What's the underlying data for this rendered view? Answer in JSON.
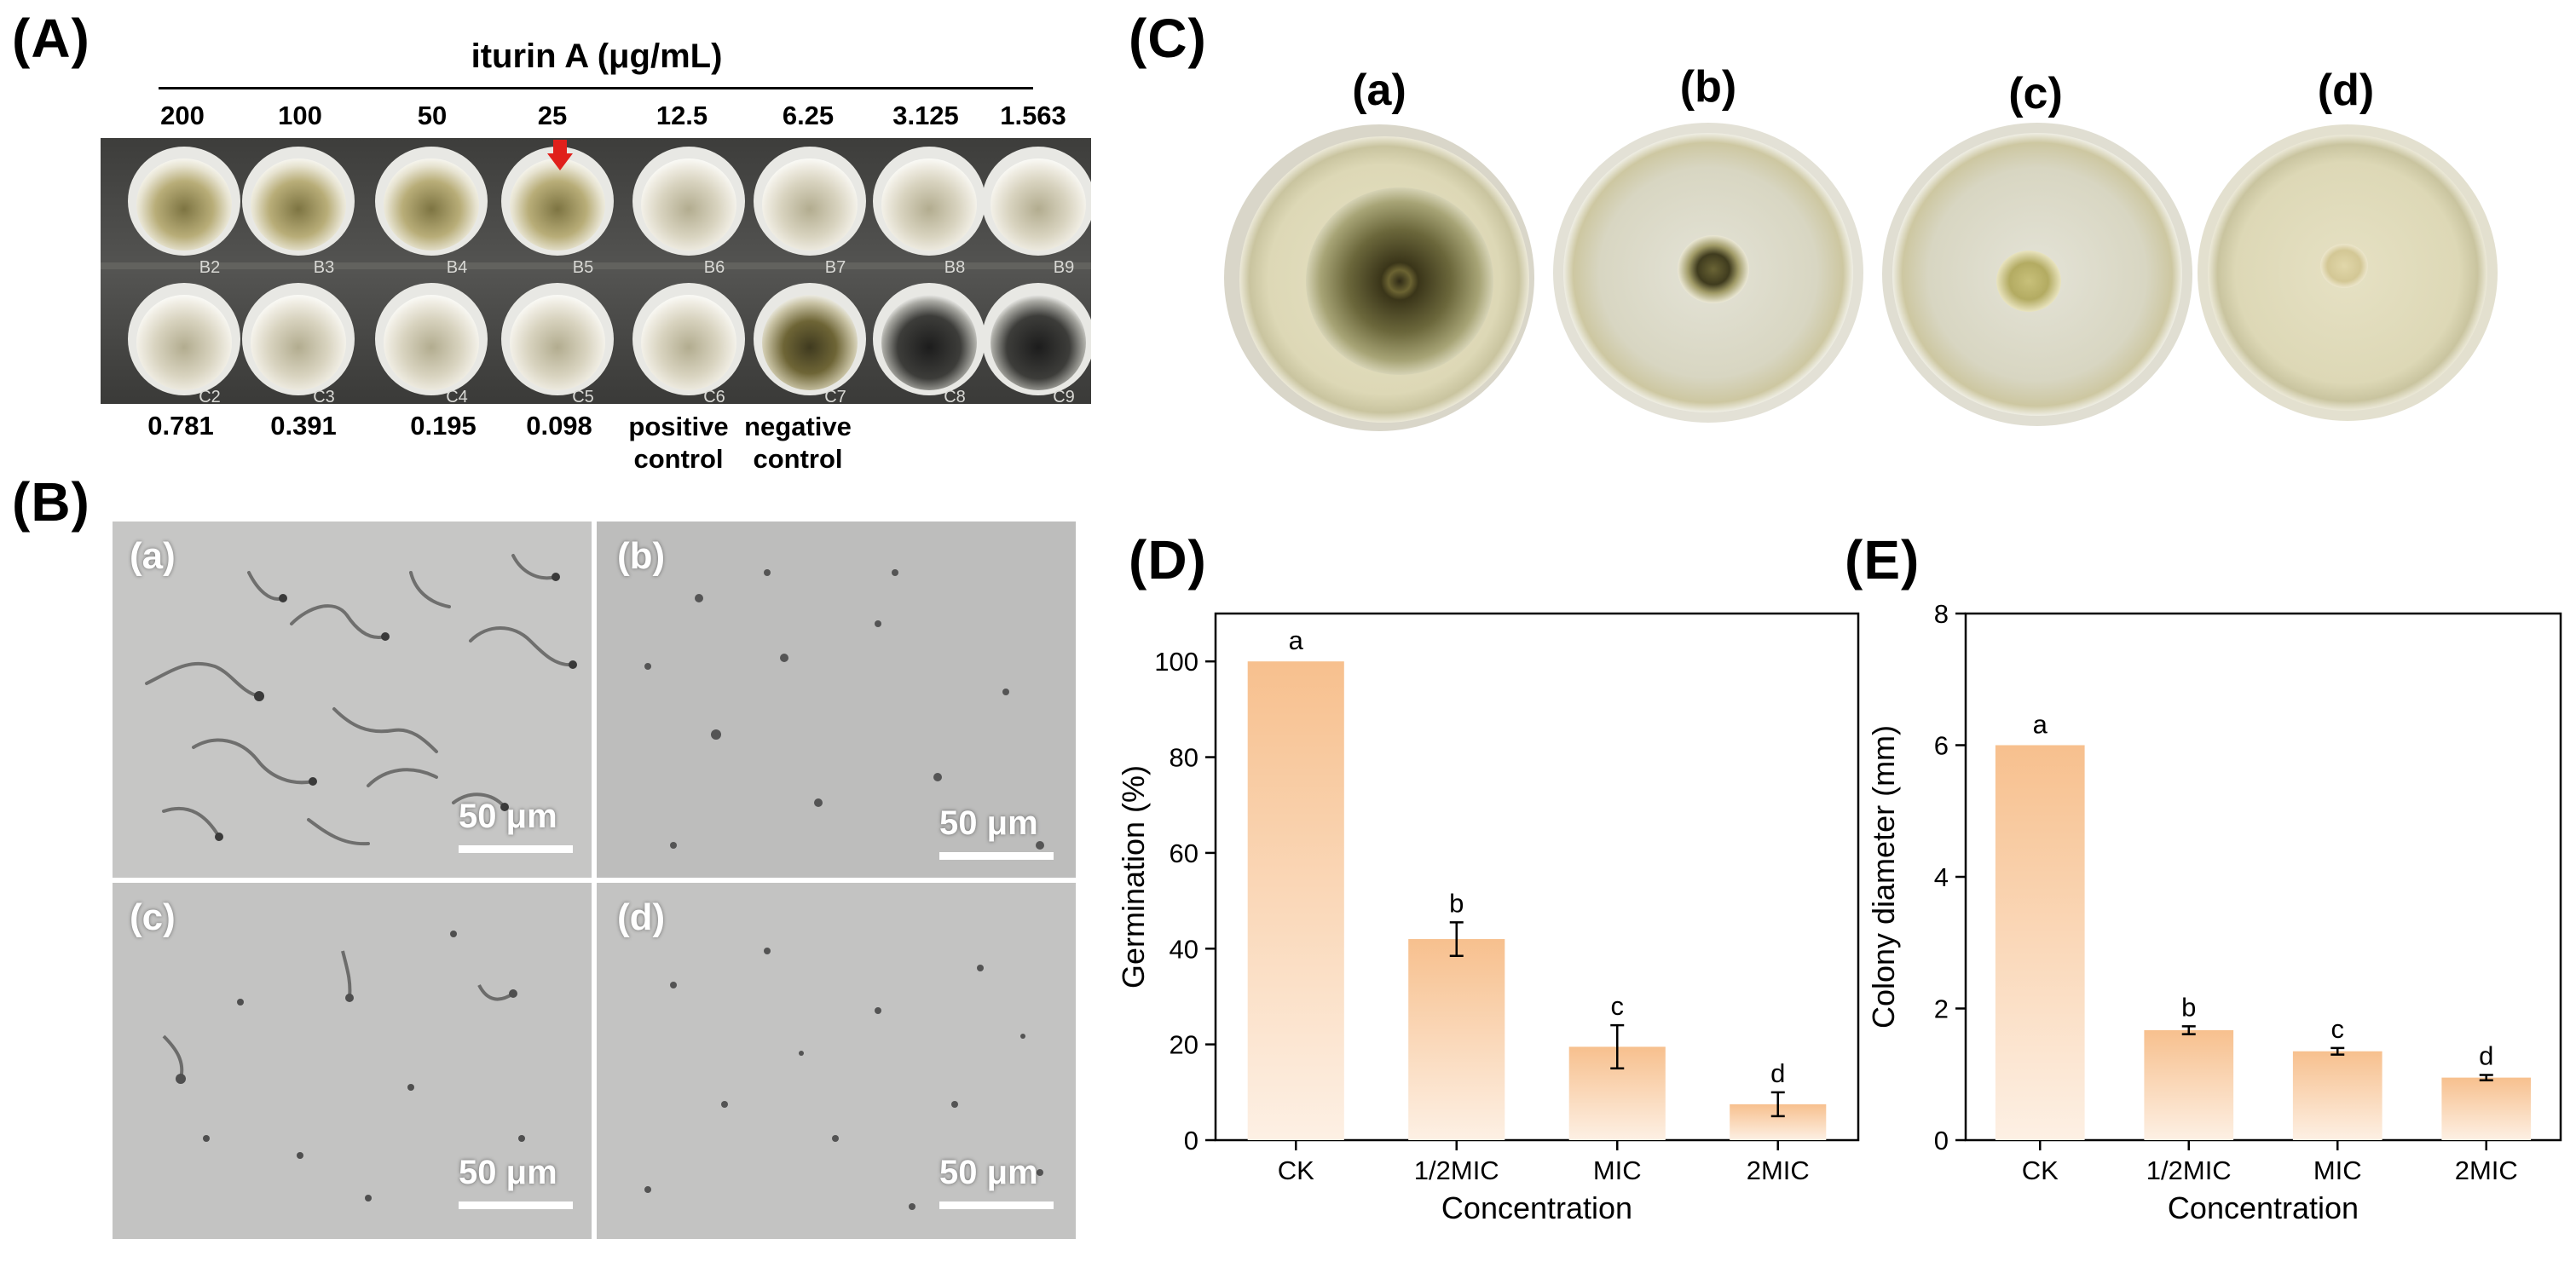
{
  "panels": {
    "A": "(A)",
    "B": "(B)",
    "C": "(C)",
    "D": "(D)",
    "E": "(E)"
  },
  "panel_a": {
    "title": "iturin A (μg/mL)",
    "top_concentrations": [
      "200",
      "100",
      "50",
      "25",
      "12.5",
      "6.25",
      "3.125",
      "1.563"
    ],
    "bottom_labels": [
      "0.781",
      "0.391",
      "0.195",
      "0.098"
    ],
    "positive_control": [
      "positive",
      "control"
    ],
    "negative_control": [
      "negative",
      "control"
    ],
    "well_row_b": [
      "B2",
      "B3",
      "B4",
      "B5",
      "B6",
      "B7",
      "B8",
      "B9"
    ],
    "well_row_c": [
      "C2",
      "C3",
      "C4",
      "C5",
      "C6",
      "C7",
      "C8",
      "C9"
    ],
    "arrow_color": "#e0201b"
  },
  "panel_b": {
    "labels": [
      "(a)",
      "(b)",
      "(c)",
      "(d)"
    ],
    "scale_bar": "50 μm"
  },
  "panel_c": {
    "labels": [
      "(a)",
      "(b)",
      "(c)",
      "(d)"
    ]
  },
  "chart_data": [
    {
      "type": "bar",
      "panel": "D",
      "categories": [
        "CK",
        "1/2MIC",
        "MIC",
        "2MIC"
      ],
      "values": [
        100,
        42,
        19.5,
        7.5
      ],
      "errors": [
        0,
        3.5,
        4.5,
        2.5
      ],
      "significance": [
        "a",
        "b",
        "c",
        "d"
      ],
      "xlabel": "Concentration",
      "ylabel": "Germination (%)",
      "ylim": [
        0,
        110
      ],
      "yticks": [
        "0",
        "20",
        "40",
        "60",
        "80",
        "100"
      ],
      "bar_color_top": "#f7c08e",
      "bar_color_bottom": "#fdf0e4"
    },
    {
      "type": "bar",
      "panel": "E",
      "categories": [
        "CK",
        "1/2MIC",
        "MIC",
        "2MIC"
      ],
      "values": [
        6.0,
        1.67,
        1.35,
        0.95
      ],
      "errors": [
        0,
        0.06,
        0.05,
        0.04
      ],
      "significance": [
        "a",
        "b",
        "c",
        "d"
      ],
      "xlabel": "Concentration",
      "ylabel": "Colony diameter (mm)",
      "ylim": [
        0,
        8
      ],
      "yticks": [
        "0",
        "2",
        "4",
        "6",
        "8"
      ],
      "bar_color_top": "#f7c08e",
      "bar_color_bottom": "#fdf0e4"
    }
  ]
}
